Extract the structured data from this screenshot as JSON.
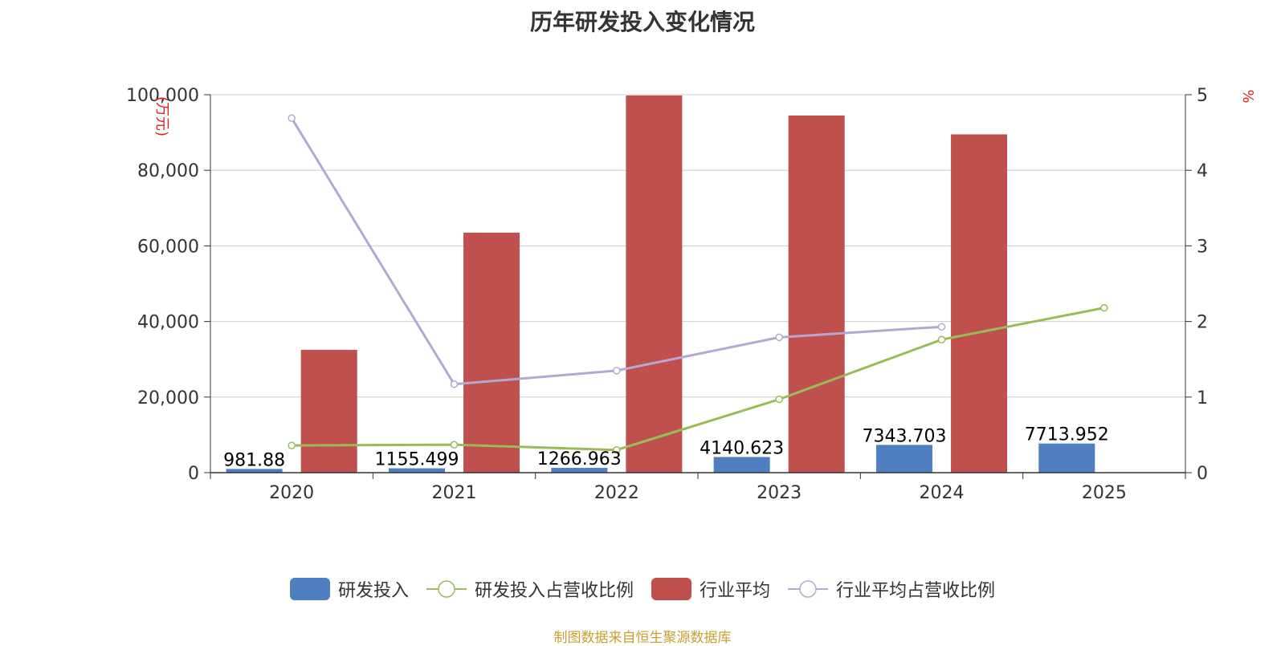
{
  "chart_data": {
    "type": "bar",
    "title": "历年研发投入变化情况",
    "categories": [
      "2020",
      "2021",
      "2022",
      "2023",
      "2024",
      "2025"
    ],
    "y_left": {
      "label": "(万元)",
      "min": 0,
      "max": 100000,
      "ticks": [
        "0",
        "20,000",
        "40,000",
        "60,000",
        "80,000",
        "100,000"
      ]
    },
    "y_right": {
      "label": "%",
      "min": 0,
      "max": 5,
      "ticks": [
        "0",
        "1",
        "2",
        "3",
        "4",
        "5"
      ]
    },
    "series": [
      {
        "name": "研发投入",
        "kind": "bar",
        "axis": "left",
        "color": "#4f7fc0",
        "values": [
          981.88,
          1155.499,
          1266.963,
          4140.623,
          7343.703,
          7713.952
        ],
        "labels": [
          "981.88",
          "1155.499",
          "1266.963",
          "4140.623",
          "7343.703",
          "7713.952"
        ]
      },
      {
        "name": "研发投入占营收比例",
        "kind": "line",
        "axis": "right",
        "color": "#9bbb59",
        "values": [
          0.36,
          0.37,
          0.3,
          0.97,
          1.76,
          2.18
        ]
      },
      {
        "name": "行业平均",
        "kind": "bar",
        "axis": "left",
        "color": "#c0504d",
        "values": [
          32500,
          63500,
          99800,
          94500,
          89500,
          null
        ]
      },
      {
        "name": "行业平均占营收比例",
        "kind": "line",
        "axis": "right",
        "color": "#b5a8d0",
        "values": [
          4.69,
          1.17,
          1.35,
          1.79,
          1.93,
          null
        ]
      }
    ],
    "legend_position": "bottom",
    "grid": true
  },
  "source_note": "制图数据来自恒生聚源数据库"
}
